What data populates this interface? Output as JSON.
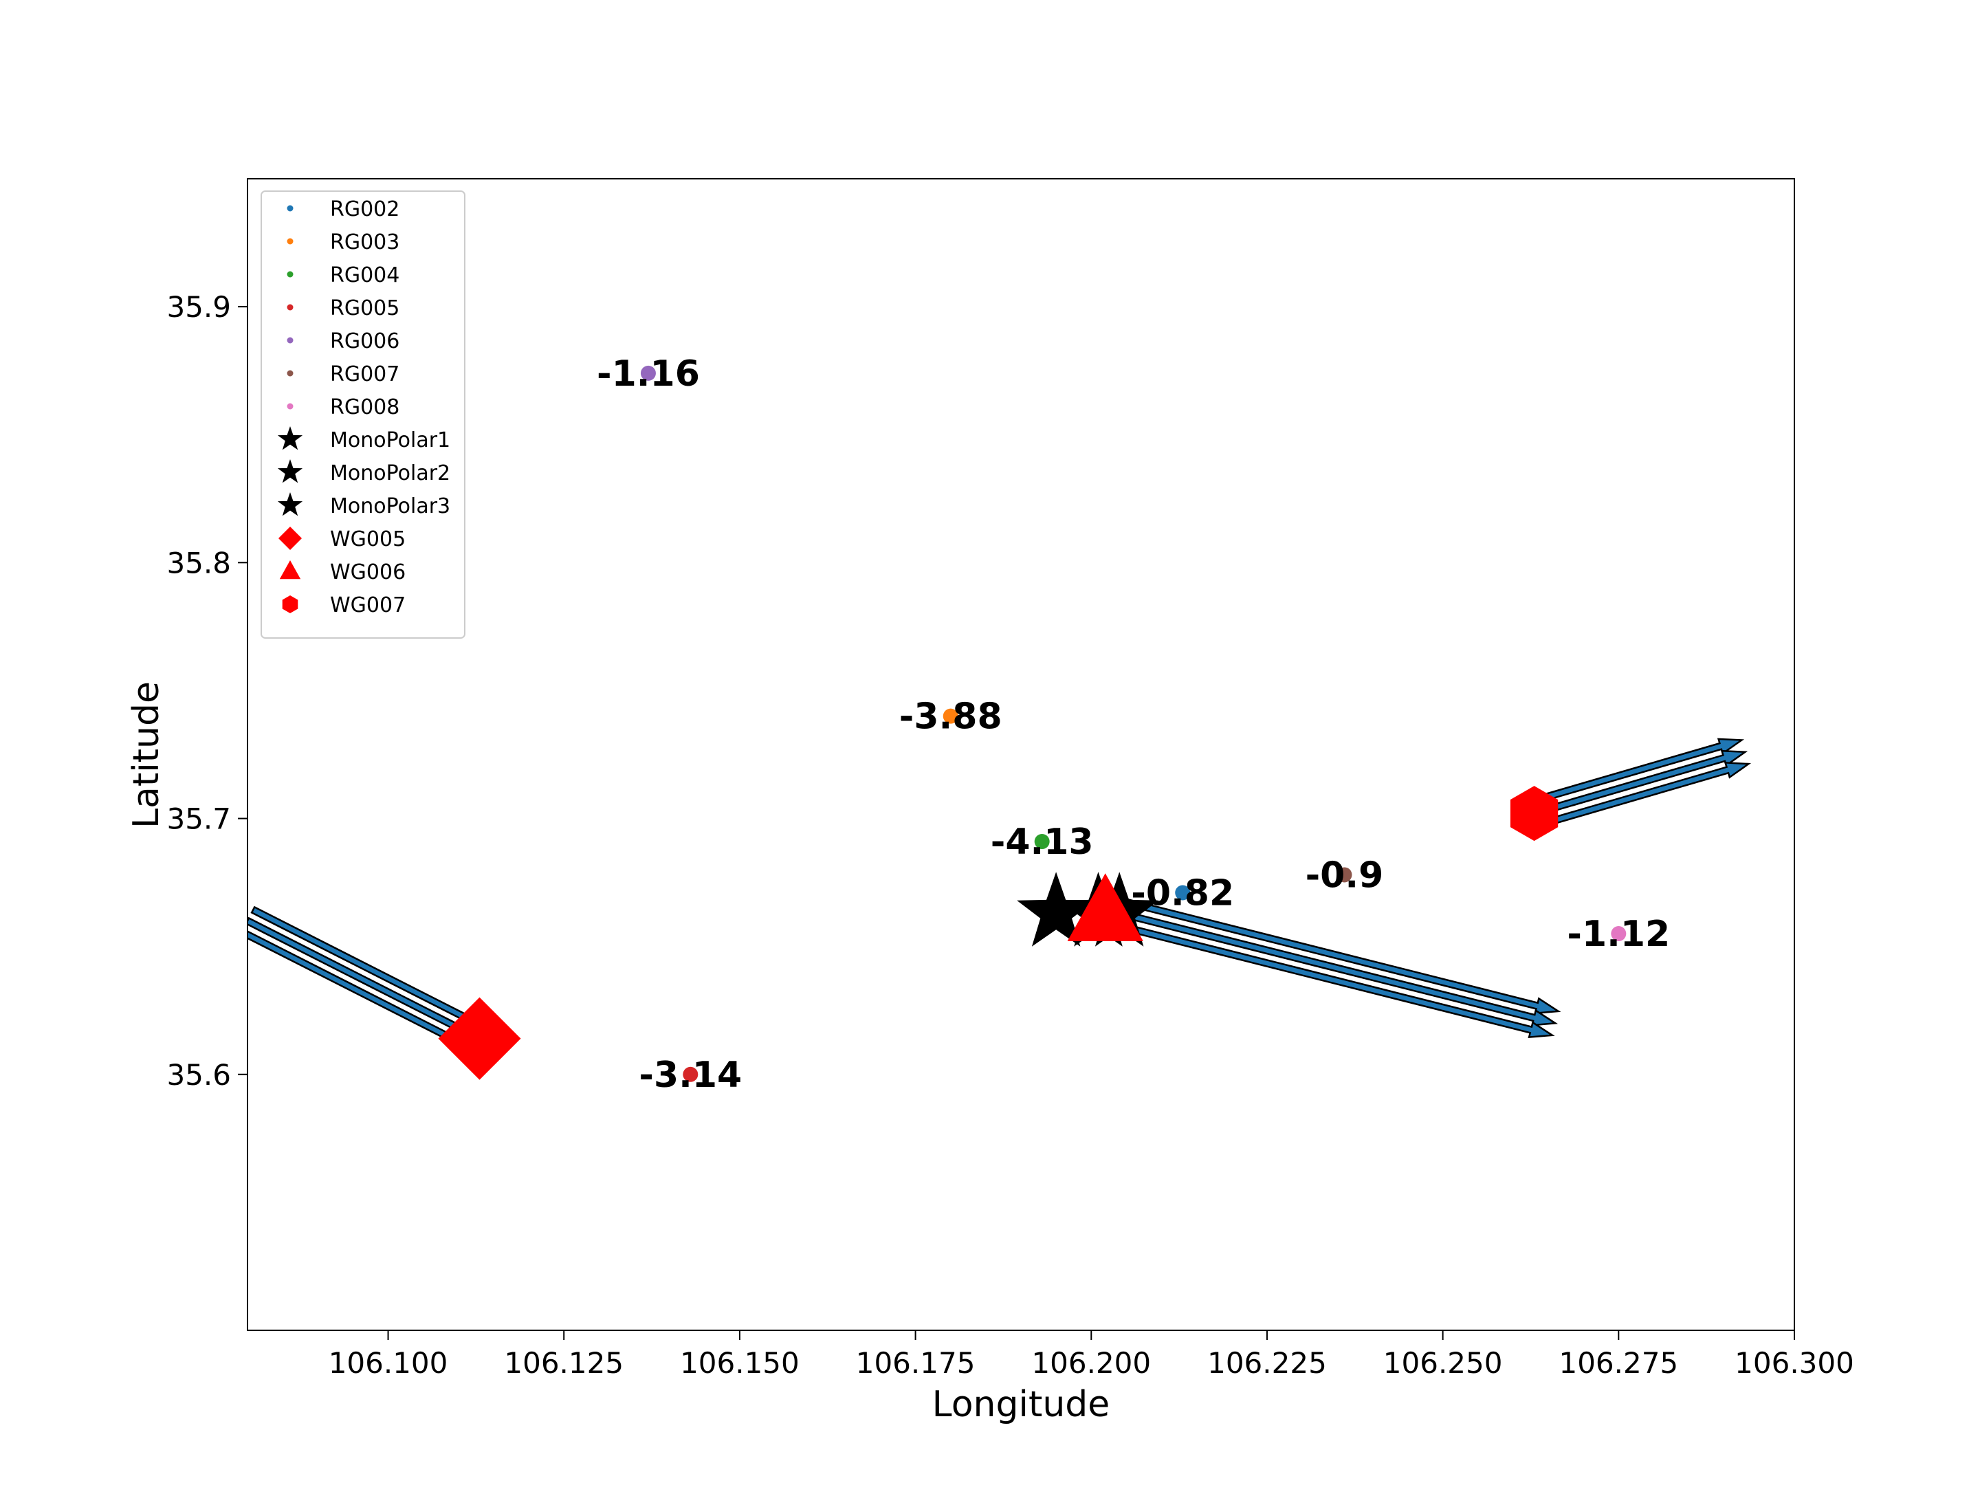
{
  "chart_data": {
    "type": "scatter",
    "xlabel": "Longitude",
    "ylabel": "Latitude",
    "xlim": [
      106.08,
      106.3
    ],
    "ylim": [
      35.5,
      35.95
    ],
    "x_ticks": [
      106.1,
      106.125,
      106.15,
      106.175,
      106.2,
      106.225,
      106.25,
      106.275,
      106.3
    ],
    "x_tick_labels": [
      "106.100",
      "106.125",
      "106.150",
      "106.175",
      "106.200",
      "106.225",
      "106.250",
      "106.275",
      "106.300"
    ],
    "y_ticks": [
      35.6,
      35.7,
      35.8,
      35.9
    ],
    "y_tick_labels": [
      "35.6",
      "35.7",
      "35.8",
      "35.9"
    ],
    "grid": false,
    "legend_placement": "top-left",
    "stations": [
      {
        "name": "RG002",
        "x": 106.213,
        "y": 35.671,
        "label": "-0.82",
        "color": "#1f77b4"
      },
      {
        "name": "RG003",
        "x": 106.18,
        "y": 35.74,
        "label": "-3.88",
        "color": "#ff7f0e"
      },
      {
        "name": "RG004",
        "x": 106.193,
        "y": 35.691,
        "label": "-4.13",
        "color": "#2ca02c"
      },
      {
        "name": "RG005",
        "x": 106.143,
        "y": 35.6,
        "label": "-3.14",
        "color": "#d62728"
      },
      {
        "name": "RG006",
        "x": 106.137,
        "y": 35.874,
        "label": "-1.16",
        "color": "#9467bd"
      },
      {
        "name": "RG007",
        "x": 106.236,
        "y": 35.678,
        "label": "-0.9",
        "color": "#8c564b"
      },
      {
        "name": "RG008",
        "x": 106.275,
        "y": 35.655,
        "label": "-1.12",
        "color": "#e377c2"
      }
    ],
    "sources": [
      {
        "name": "MonoPolar1",
        "x": 106.195,
        "y": 35.663,
        "marker": "star",
        "color": "#000000"
      },
      {
        "name": "MonoPolar2",
        "x": 106.201,
        "y": 35.663,
        "marker": "star",
        "color": "#000000"
      },
      {
        "name": "MonoPolar3",
        "x": 106.204,
        "y": 35.663,
        "marker": "star",
        "color": "#000000"
      }
    ],
    "wells": [
      {
        "name": "WG005",
        "x": 106.113,
        "y": 35.614,
        "marker": "diamond",
        "color": "#ff0000"
      },
      {
        "name": "WG006",
        "x": 106.202,
        "y": 35.663,
        "marker": "triangle",
        "color": "#ff0000"
      },
      {
        "name": "WG007",
        "x": 106.263,
        "y": 35.702,
        "marker": "hexagon",
        "color": "#ff0000"
      }
    ],
    "arrow_color": "#1f77b4",
    "arrow_groups": [
      {
        "from": [
          106.08,
          35.66
        ],
        "to": [
          106.113,
          35.614
        ],
        "count": 3,
        "head": false
      },
      {
        "from": [
          106.204,
          35.663
        ],
        "to": [
          106.266,
          35.62
        ],
        "count": 3,
        "head": true
      },
      {
        "from": [
          106.263,
          35.702
        ],
        "to": [
          106.293,
          35.726
        ],
        "count": 3,
        "head": true
      }
    ]
  }
}
